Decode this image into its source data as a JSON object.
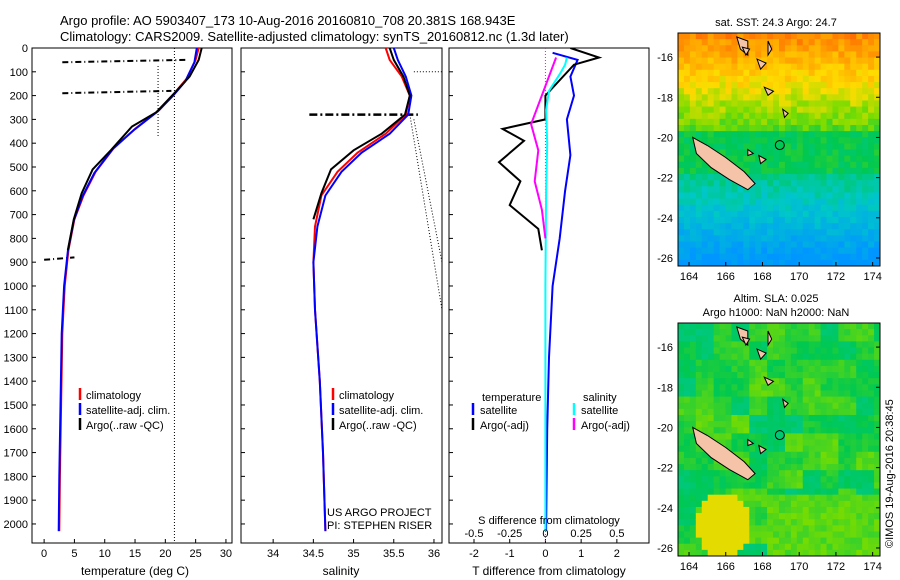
{
  "title_line1": "Argo profile: AO 5903407_173 10-Aug-2016 20160810_708 20.381S 168.943E",
  "title_line2": "Climatology: CARS2009. Satellite-adjusted climatology: synTS_20160812.nc (1.3d later)",
  "colors": {
    "climatology": "#ff0000",
    "satellite": "#0000ff",
    "argo": "#000000",
    "salinity_sat": "#00ffff",
    "salinity_argo": "#ff00ff",
    "land": "#f5c4a8"
  },
  "chart_data": [
    {
      "id": "temperature",
      "type": "line",
      "xlabel": "temperature (deg C)",
      "xlim": [
        -2,
        31
      ],
      "ylim": [
        2080,
        0
      ],
      "xticks": [
        0,
        5,
        10,
        15,
        20,
        25,
        30
      ],
      "yticks": [
        0,
        100,
        200,
        300,
        400,
        500,
        600,
        700,
        800,
        900,
        1000,
        1100,
        1200,
        1300,
        1400,
        1500,
        1600,
        1700,
        1800,
        1900,
        2000
      ],
      "legend": {
        "items": [
          "climatology",
          "satellite-adj. clim.",
          "Argo(..raw -QC)"
        ],
        "placement": "bottom-center"
      },
      "series": [
        {
          "name": "climatology",
          "color": "#ff0000",
          "points": [
            [
              25.5,
              0
            ],
            [
              25,
              50
            ],
            [
              23.5,
              130
            ],
            [
              21.5,
              190
            ],
            [
              19,
              260
            ],
            [
              15,
              340
            ],
            [
              11.5,
              420
            ],
            [
              8.5,
              520
            ],
            [
              6.5,
              620
            ],
            [
              5,
              720
            ],
            [
              4,
              850
            ],
            [
              3.4,
              1000
            ],
            [
              3,
              1200
            ],
            [
              2.8,
              1500
            ],
            [
              2.6,
              1800
            ],
            [
              2.5,
              2030
            ]
          ]
        },
        {
          "name": "satellite-adj. clim.",
          "color": "#0000ff",
          "points": [
            [
              25.2,
              0
            ],
            [
              24.8,
              60
            ],
            [
              23.3,
              140
            ],
            [
              21.3,
              200
            ],
            [
              18.8,
              265
            ],
            [
              14.8,
              345
            ],
            [
              11.3,
              425
            ],
            [
              8.3,
              525
            ],
            [
              6.3,
              625
            ],
            [
              4.9,
              725
            ],
            [
              3.9,
              855
            ],
            [
              3.3,
              1000
            ],
            [
              2.9,
              1200
            ],
            [
              2.7,
              1500
            ],
            [
              2.5,
              1800
            ],
            [
              2.4,
              2030
            ]
          ]
        },
        {
          "name": "Argo(..raw -QC)",
          "color": "#000000",
          "points": [
            [
              26,
              0
            ],
            [
              25.5,
              50
            ],
            [
              24,
              120
            ],
            [
              21.5,
              190
            ],
            [
              18.5,
              270
            ],
            [
              14.5,
              330
            ],
            [
              11,
              430
            ],
            [
              8,
              510
            ],
            [
              6.2,
              610
            ],
            [
              4.9,
              720
            ],
            [
              3.9,
              850
            ]
          ]
        }
      ]
    },
    {
      "id": "salinity",
      "type": "line",
      "xlabel": "salinity",
      "xlim": [
        33.6,
        36.1
      ],
      "ylim": [
        2080,
        0
      ],
      "xticks": [
        34,
        34.5,
        35,
        35.5,
        36
      ],
      "legend": {
        "items": [
          "climatology",
          "satellite-adj. clim.",
          "Argo(..raw -QC)"
        ],
        "placement": "bottom-right"
      },
      "annotation": [
        "US ARGO PROJECT",
        "PI: STEPHEN RISER"
      ],
      "series": [
        {
          "name": "climatology",
          "color": "#ff0000",
          "points": [
            [
              35.4,
              0
            ],
            [
              35.45,
              50
            ],
            [
              35.6,
              120
            ],
            [
              35.7,
              200
            ],
            [
              35.65,
              280
            ],
            [
              35.4,
              360
            ],
            [
              35.05,
              440
            ],
            [
              34.8,
              520
            ],
            [
              34.6,
              620
            ],
            [
              34.52,
              750
            ],
            [
              34.5,
              900
            ],
            [
              34.52,
              1100
            ],
            [
              34.58,
              1400
            ],
            [
              34.62,
              1700
            ],
            [
              34.65,
              2030
            ]
          ]
        },
        {
          "name": "satellite-adj. clim.",
          "color": "#0000ff",
          "points": [
            [
              35.5,
              0
            ],
            [
              35.55,
              50
            ],
            [
              35.65,
              120
            ],
            [
              35.72,
              200
            ],
            [
              35.68,
              280
            ],
            [
              35.45,
              360
            ],
            [
              35.1,
              440
            ],
            [
              34.85,
              520
            ],
            [
              34.65,
              620
            ],
            [
              34.55,
              750
            ],
            [
              34.5,
              900
            ],
            [
              34.52,
              1100
            ],
            [
              34.58,
              1400
            ],
            [
              34.62,
              1700
            ],
            [
              34.65,
              2030
            ]
          ]
        },
        {
          "name": "Argo(..raw -QC)",
          "color": "#000000",
          "points": [
            [
              35.45,
              0
            ],
            [
              35.5,
              50
            ],
            [
              35.62,
              120
            ],
            [
              35.7,
              200
            ],
            [
              35.64,
              280
            ],
            [
              35.35,
              360
            ],
            [
              35,
              430
            ],
            [
              34.72,
              510
            ],
            [
              34.6,
              610
            ],
            [
              34.5,
              720
            ]
          ]
        }
      ]
    },
    {
      "id": "difference",
      "type": "line",
      "xlabel": "T difference from climatology",
      "xlabel2": "S difference from climatology",
      "xlim": [
        -2.7,
        2.9
      ],
      "x2lim": [
        -0.675,
        0.725
      ],
      "ylim": [
        2080,
        0
      ],
      "xticks": [
        -2,
        -1,
        0,
        1,
        2
      ],
      "x2ticks": [
        -0.5,
        -0.25,
        0,
        0.25,
        0.5
      ],
      "x2ticklabels": [
        "-0.5",
        "-0.25",
        "0",
        "0.25",
        "0.5"
      ],
      "legend": {
        "items": [
          "temperature",
          "satellite",
          "Argo(-adj)",
          "salinity",
          "satellite",
          "Argo(-adj)"
        ],
        "placement": "bottom"
      },
      "series": [
        {
          "name": "T satellite",
          "color": "#0000ff",
          "points": [
            [
              0.2,
              20
            ],
            [
              0.9,
              50
            ],
            [
              0.7,
              120
            ],
            [
              0.8,
              200
            ],
            [
              0.6,
              300
            ],
            [
              0.7,
              450
            ],
            [
              0.55,
              600
            ],
            [
              0.4,
              800
            ],
            [
              0.2,
              1000
            ],
            [
              0.1,
              1300
            ],
            [
              0.05,
              1600
            ],
            [
              0.02,
              2030
            ]
          ]
        },
        {
          "name": "T Argo(-adj)",
          "color": "#000000",
          "points": [
            [
              0.7,
              0
            ],
            [
              1.5,
              40
            ],
            [
              0.8,
              70
            ],
            [
              0,
              200
            ],
            [
              0,
              300
            ],
            [
              -1.2,
              340
            ],
            [
              -0.6,
              390
            ],
            [
              -1.3,
              480
            ],
            [
              -0.7,
              560
            ],
            [
              -1.0,
              660
            ],
            [
              -0.2,
              760
            ],
            [
              -0.1,
              850
            ]
          ]
        },
        {
          "name": "S satellite",
          "color": "#00ffff",
          "points": [
            [
              0.6,
              40
            ],
            [
              0.55,
              70
            ],
            [
              0.4,
              110
            ],
            [
              0.1,
              180
            ],
            [
              0.02,
              260
            ],
            [
              0.05,
              400
            ],
            [
              0.02,
              600
            ],
            [
              0,
              1000
            ],
            [
              0,
              1500
            ],
            [
              0,
              2030
            ]
          ]
        },
        {
          "name": "S Argo(-adj)",
          "color": "#ff00ff",
          "points": [
            [
              0.3,
              40
            ],
            [
              -0.4,
              320
            ],
            [
              -0.2,
              430
            ],
            [
              -0.3,
              560
            ],
            [
              -0.1,
              680
            ],
            [
              0,
              800
            ]
          ]
        }
      ]
    },
    {
      "id": "sst_map",
      "type": "heatmap",
      "title": "sat. SST: 24.3 Argo: 24.7",
      "xlim": [
        163.4,
        174.4
      ],
      "ylim": [
        -26.4,
        -14.8
      ],
      "xticks": [
        164,
        166,
        168,
        170,
        172,
        174
      ],
      "yticks": [
        -16,
        -18,
        -20,
        -22,
        -24,
        -26
      ],
      "argo_position": [
        168.943,
        -20.381
      ]
    },
    {
      "id": "sla_map",
      "type": "heatmap",
      "title_line1": "Altim. SLA: 0.025",
      "title_line2": "Argo h1000: NaN h2000: NaN",
      "xlim": [
        163.4,
        174.4
      ],
      "ylim": [
        -26.4,
        -14.8
      ],
      "xticks": [
        164,
        166,
        168,
        170,
        172,
        174
      ],
      "yticks": [
        -16,
        -18,
        -20,
        -22,
        -24,
        -26
      ],
      "argo_position": [
        168.943,
        -20.381
      ]
    }
  ],
  "credit": "©IMOS 19-Aug-2016 20:38:45"
}
